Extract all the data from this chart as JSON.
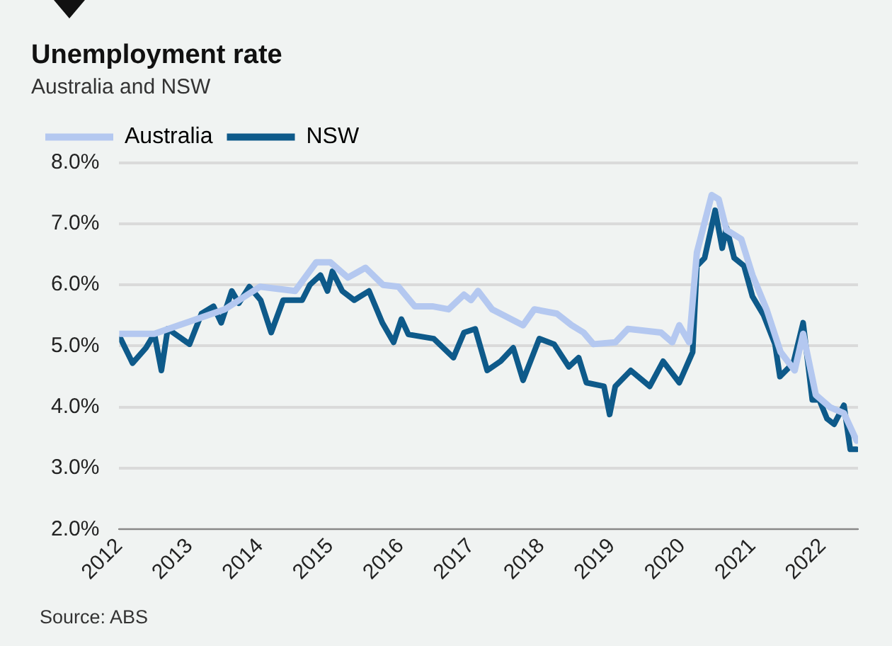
{
  "chart_data": {
    "type": "line",
    "title": "Unemployment rate",
    "subtitle": "Australia and NSW",
    "annotations": [
      "Source: ABS"
    ],
    "legend": "top left",
    "grid": "y",
    "marker": "none",
    "line_style": "solid",
    "xlim": [
      2012,
      2022.5
    ],
    "xticks": [
      2012,
      2013,
      2014,
      2015,
      2016,
      2017,
      2018,
      2019,
      2020,
      2021,
      2022
    ],
    "ylim": [
      2,
      8
    ],
    "yticks": [
      {
        "value": 2,
        "label": "2.0%"
      },
      {
        "value": 3,
        "label": "3.0%"
      },
      {
        "value": 4,
        "label": "4.0%"
      },
      {
        "value": 5,
        "label": "5.0%"
      },
      {
        "value": 6,
        "label": "6.0%"
      },
      {
        "value": 7,
        "label": "7.0%"
      },
      {
        "value": 8,
        "label": "8.0%"
      }
    ],
    "series": [
      {
        "name": "Australia",
        "color": "#b4c8f0",
        "x": [
          2012.0,
          2012.5,
          2013.0,
          2013.5,
          2014.0,
          2014.5,
          2014.8,
          2015.0,
          2015.25,
          2015.5,
          2015.75,
          2015.97,
          2016.2,
          2016.45,
          2016.68,
          2016.9,
          2017.0,
          2017.1,
          2017.3,
          2017.74,
          2017.9,
          2018.22,
          2018.43,
          2018.6,
          2018.74,
          2019.05,
          2019.23,
          2019.7,
          2019.86,
          2019.96,
          2020.1,
          2020.21,
          2020.42,
          2020.52,
          2020.63,
          2020.84,
          2021.0,
          2021.2,
          2021.4,
          2021.6,
          2021.72,
          2021.9,
          2022.1,
          2022.3,
          2022.48
        ],
        "values": [
          5.2,
          5.2,
          5.4,
          5.6,
          5.97,
          5.9,
          6.37,
          6.37,
          6.12,
          6.28,
          6.0,
          5.97,
          5.65,
          5.65,
          5.6,
          5.84,
          5.75,
          5.9,
          5.6,
          5.34,
          5.6,
          5.53,
          5.34,
          5.22,
          5.03,
          5.06,
          5.28,
          5.22,
          5.06,
          5.34,
          5.06,
          6.53,
          7.47,
          7.4,
          6.9,
          6.75,
          6.16,
          5.6,
          4.9,
          4.6,
          5.2,
          4.2,
          4.0,
          3.9,
          3.45
        ]
      },
      {
        "name": "NSW",
        "color": "#0e5a8a",
        "x": [
          2012.02,
          2012.19,
          2012.38,
          2012.5,
          2012.6,
          2012.69,
          2013.0,
          2013.17,
          2013.34,
          2013.45,
          2013.6,
          2013.7,
          2013.85,
          2014.01,
          2014.16,
          2014.33,
          2014.6,
          2014.71,
          2014.86,
          2014.96,
          2015.03,
          2015.17,
          2015.34,
          2015.55,
          2015.74,
          2015.9,
          2016.01,
          2016.11,
          2016.47,
          2016.75,
          2016.9,
          2017.06,
          2017.23,
          2017.42,
          2017.6,
          2017.74,
          2017.97,
          2018.18,
          2018.39,
          2018.53,
          2018.64,
          2018.89,
          2018.97,
          2019.05,
          2019.27,
          2019.54,
          2019.73,
          2019.96,
          2020.15,
          2020.21,
          2020.32,
          2020.47,
          2020.57,
          2020.63,
          2020.74,
          2020.88,
          2021.0,
          2021.16,
          2021.32,
          2021.39,
          2021.58,
          2021.72,
          2021.85,
          2021.95,
          2022.06,
          2022.16,
          2022.3,
          2022.39,
          2022.48
        ],
        "values": [
          5.12,
          4.72,
          4.97,
          5.2,
          4.6,
          5.28,
          5.03,
          5.53,
          5.65,
          5.38,
          5.9,
          5.7,
          5.97,
          5.75,
          5.22,
          5.75,
          5.75,
          6.0,
          6.16,
          5.9,
          6.22,
          5.9,
          5.75,
          5.9,
          5.38,
          5.06,
          5.44,
          5.19,
          5.12,
          4.81,
          5.22,
          5.28,
          4.6,
          4.75,
          4.97,
          4.44,
          5.12,
          5.03,
          4.66,
          4.81,
          4.4,
          4.34,
          3.88,
          4.34,
          4.6,
          4.34,
          4.75,
          4.4,
          4.9,
          6.31,
          6.44,
          7.22,
          6.6,
          6.94,
          6.44,
          6.31,
          5.81,
          5.5,
          5.03,
          4.5,
          4.72,
          5.38,
          4.12,
          4.12,
          3.81,
          3.72,
          4.03,
          3.31,
          3.31
        ]
      }
    ]
  }
}
